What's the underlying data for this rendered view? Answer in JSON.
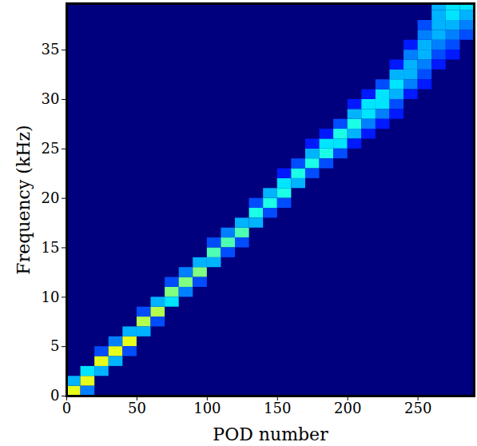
{
  "chart_data": {
    "type": "heatmap",
    "x_label": "POD number",
    "y_label": "Frequency (kHz)",
    "xlim": [
      0,
      290
    ],
    "ylim": [
      0,
      39.7
    ],
    "xticks": [
      0,
      50,
      100,
      150,
      200,
      250
    ],
    "yticks": [
      0,
      5,
      10,
      15,
      20,
      25,
      30,
      35
    ],
    "grid": false,
    "color_range": [
      0,
      1
    ],
    "x_bins": [
      0,
      10,
      20,
      30,
      40,
      50,
      60,
      70,
      80,
      90,
      100,
      110,
      120,
      130,
      140,
      150,
      160,
      170,
      180,
      190,
      200,
      210,
      220,
      230,
      240,
      250,
      260,
      270,
      280,
      290
    ],
    "y_bins": [
      0,
      1,
      2,
      3,
      4,
      5,
      6,
      7,
      8,
      9,
      10,
      11,
      12,
      13,
      14,
      15,
      16,
      17,
      18,
      19,
      20,
      21,
      22,
      23,
      24,
      25,
      26,
      27,
      28,
      29,
      30,
      31,
      32,
      33,
      34,
      35,
      36,
      37,
      38,
      39,
      40
    ],
    "cells": [
      [
        0,
        0,
        0.6
      ],
      [
        0,
        1,
        0.3
      ],
      [
        10,
        1,
        0.6
      ],
      [
        10,
        2,
        0.35
      ],
      [
        10,
        0,
        0.25
      ],
      [
        20,
        2,
        0.3
      ],
      [
        20,
        3,
        0.6
      ],
      [
        20,
        4,
        0.2
      ],
      [
        30,
        4,
        0.6
      ],
      [
        30,
        3,
        0.3
      ],
      [
        30,
        5,
        0.25
      ],
      [
        40,
        5,
        0.6
      ],
      [
        40,
        6,
        0.3
      ],
      [
        40,
        4,
        0.2
      ],
      [
        50,
        7,
        0.55
      ],
      [
        50,
        6,
        0.3
      ],
      [
        50,
        8,
        0.2
      ],
      [
        60,
        8,
        0.55
      ],
      [
        60,
        9,
        0.3
      ],
      [
        60,
        7,
        0.2
      ],
      [
        70,
        10,
        0.5
      ],
      [
        70,
        9,
        0.35
      ],
      [
        70,
        11,
        0.2
      ],
      [
        80,
        11,
        0.5
      ],
      [
        80,
        10,
        0.25
      ],
      [
        80,
        12,
        0.25
      ],
      [
        90,
        12,
        0.5
      ],
      [
        90,
        13,
        0.3
      ],
      [
        90,
        11,
        0.2
      ],
      [
        100,
        14,
        0.45
      ],
      [
        100,
        13,
        0.3
      ],
      [
        100,
        15,
        0.2
      ],
      [
        110,
        15,
        0.45
      ],
      [
        110,
        16,
        0.25
      ],
      [
        110,
        14,
        0.2
      ],
      [
        120,
        16,
        0.45
      ],
      [
        120,
        17,
        0.3
      ],
      [
        120,
        15,
        0.2
      ],
      [
        130,
        18,
        0.4
      ],
      [
        130,
        17,
        0.3
      ],
      [
        130,
        19,
        0.2
      ],
      [
        140,
        19,
        0.4
      ],
      [
        140,
        20,
        0.3
      ],
      [
        140,
        18,
        0.2
      ],
      [
        150,
        20,
        0.4
      ],
      [
        150,
        21,
        0.35
      ],
      [
        150,
        19,
        0.2
      ],
      [
        150,
        22,
        0.15
      ],
      [
        160,
        22,
        0.4
      ],
      [
        160,
        21,
        0.3
      ],
      [
        160,
        23,
        0.2
      ],
      [
        170,
        23,
        0.4
      ],
      [
        170,
        24,
        0.3
      ],
      [
        170,
        22,
        0.2
      ],
      [
        170,
        25,
        0.15
      ],
      [
        180,
        24,
        0.4
      ],
      [
        180,
        25,
        0.35
      ],
      [
        180,
        23,
        0.2
      ],
      [
        180,
        26,
        0.15
      ],
      [
        190,
        25,
        0.35
      ],
      [
        190,
        26,
        0.4
      ],
      [
        190,
        27,
        0.2
      ],
      [
        190,
        24,
        0.2
      ],
      [
        200,
        27,
        0.4
      ],
      [
        200,
        26,
        0.3
      ],
      [
        200,
        28,
        0.3
      ],
      [
        200,
        25,
        0.15
      ],
      [
        200,
        29,
        0.15
      ],
      [
        210,
        28,
        0.35
      ],
      [
        210,
        29,
        0.35
      ],
      [
        210,
        27,
        0.25
      ],
      [
        210,
        30,
        0.15
      ],
      [
        210,
        26,
        0.15
      ],
      [
        220,
        29,
        0.35
      ],
      [
        220,
        30,
        0.35
      ],
      [
        220,
        28,
        0.25
      ],
      [
        220,
        31,
        0.2
      ],
      [
        220,
        27,
        0.15
      ],
      [
        230,
        30,
        0.3
      ],
      [
        230,
        31,
        0.35
      ],
      [
        230,
        32,
        0.3
      ],
      [
        230,
        29,
        0.2
      ],
      [
        230,
        33,
        0.15
      ],
      [
        230,
        28,
        0.15
      ],
      [
        240,
        32,
        0.3
      ],
      [
        240,
        33,
        0.3
      ],
      [
        240,
        34,
        0.25
      ],
      [
        240,
        31,
        0.25
      ],
      [
        240,
        30,
        0.15
      ],
      [
        240,
        35,
        0.15
      ],
      [
        250,
        33,
        0.25
      ],
      [
        250,
        34,
        0.3
      ],
      [
        250,
        35,
        0.3
      ],
      [
        250,
        36,
        0.25
      ],
      [
        250,
        32,
        0.2
      ],
      [
        250,
        37,
        0.2
      ],
      [
        250,
        31,
        0.15
      ],
      [
        260,
        34,
        0.2
      ],
      [
        260,
        35,
        0.25
      ],
      [
        260,
        36,
        0.3
      ],
      [
        260,
        37,
        0.3
      ],
      [
        260,
        38,
        0.3
      ],
      [
        260,
        39,
        0.3
      ],
      [
        260,
        33,
        0.15
      ],
      [
        270,
        35,
        0.2
      ],
      [
        270,
        36,
        0.25
      ],
      [
        270,
        37,
        0.3
      ],
      [
        270,
        38,
        0.35
      ],
      [
        270,
        39,
        0.35
      ],
      [
        270,
        34,
        0.15
      ],
      [
        280,
        36,
        0.2
      ],
      [
        280,
        37,
        0.25
      ],
      [
        280,
        38,
        0.3
      ],
      [
        280,
        39,
        0.35
      ]
    ]
  }
}
